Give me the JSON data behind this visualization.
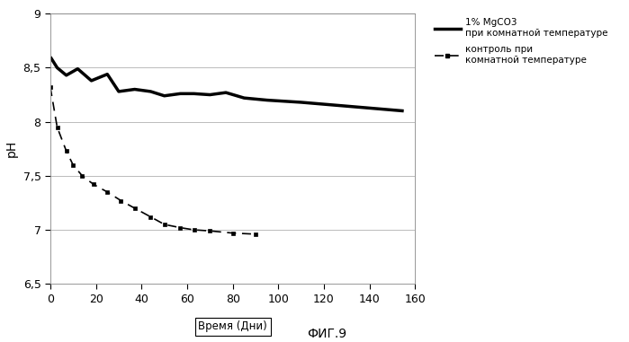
{
  "title": "ФИГ.9",
  "xlabel": "Время (Дни)",
  "ylabel": "pH",
  "xlim": [
    0,
    160
  ],
  "ylim": [
    6.5,
    9
  ],
  "xticks": [
    0,
    20,
    40,
    60,
    80,
    100,
    120,
    140,
    160
  ],
  "yticks": [
    6.5,
    7.0,
    7.5,
    8.0,
    8.5,
    9.0
  ],
  "ytick_labels": [
    "6,5",
    "7",
    "7,5",
    "8",
    "8,5",
    "9"
  ],
  "line1_x": [
    0,
    3,
    7,
    12,
    18,
    25,
    30,
    37,
    44,
    50,
    57,
    63,
    70,
    77,
    85,
    95,
    110,
    155
  ],
  "line1_y": [
    8.6,
    8.5,
    8.43,
    8.49,
    8.38,
    8.44,
    8.28,
    8.3,
    8.28,
    8.24,
    8.26,
    8.26,
    8.25,
    8.27,
    8.22,
    8.2,
    8.18,
    8.1
  ],
  "line2_x": [
    0,
    3,
    7,
    10,
    14,
    19,
    25,
    31,
    37,
    44,
    50,
    57,
    63,
    70,
    80,
    90
  ],
  "line2_y": [
    8.32,
    7.95,
    7.73,
    7.6,
    7.5,
    7.42,
    7.35,
    7.27,
    7.2,
    7.12,
    7.05,
    7.02,
    7.0,
    6.99,
    6.97,
    6.96
  ],
  "line1_label_1": "1% MgCO3",
  "line1_label_2": "при комнатной температуре",
  "line2_label_1": "контроль при",
  "line2_label_2": "комнатной температуре",
  "line1_color": "#000000",
  "line2_color": "#000000",
  "background_color": "#ffffff",
  "grid_color": "#bbbbbb",
  "fig_width": 6.99,
  "fig_height": 3.81,
  "dpi": 100
}
